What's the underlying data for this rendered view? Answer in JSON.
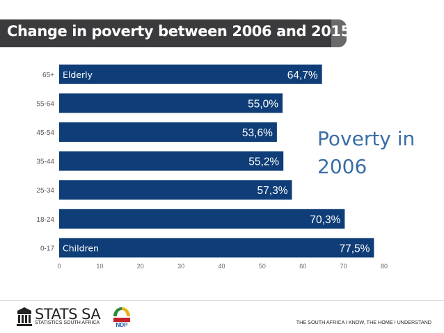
{
  "header": {
    "title": "Change in poverty between 2006 and 2015"
  },
  "annotation": {
    "line1": "Poverty in",
    "line2": "2006"
  },
  "chart_data": {
    "type": "bar",
    "orientation": "horizontal",
    "categories": [
      "65+",
      "55-64",
      "45-54",
      "35-44",
      "25-34",
      "18-24",
      "0-17"
    ],
    "values": [
      64.7,
      55.0,
      53.6,
      55.2,
      57.3,
      70.3,
      77.5
    ],
    "data_labels": [
      "64,7%",
      "55,0%",
      "53,6%",
      "55,2%",
      "57,3%",
      "70,3%",
      "77,5%"
    ],
    "bar_annotations": {
      "65+": "Elderly",
      "0-17": "Children"
    },
    "x_ticks": [
      0,
      10,
      20,
      30,
      40,
      50,
      60,
      70,
      80
    ],
    "xlim": [
      0,
      80
    ],
    "bar_color": "#0f3d78",
    "grid": false
  },
  "footer": {
    "org_name": "STATS SA",
    "org_subtitle": "STATISTICS SOUTH AFRICA",
    "ndp_logo_text": "NDP",
    "tagline": "THE SOUTH AFRICA I KNOW, THE HOME I UNDERSTAND"
  }
}
